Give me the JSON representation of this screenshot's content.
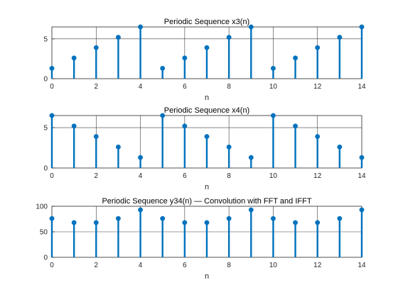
{
  "figure": {
    "background": "#ffffff",
    "stem_color": "#0072bd",
    "grid_color": "#262626"
  },
  "chart_data": [
    {
      "type": "stem",
      "title": "Periodic Sequence x3(n)",
      "xlabel": "n",
      "ylabel": "",
      "xlim": [
        0,
        14
      ],
      "ylim": [
        0,
        6.5
      ],
      "xticks": [
        0,
        2,
        4,
        6,
        8,
        10,
        12,
        14
      ],
      "yticks": [
        0,
        5
      ],
      "grid": true,
      "x": [
        0,
        1,
        2,
        3,
        4,
        5,
        6,
        7,
        8,
        9,
        10,
        11,
        12,
        13,
        14
      ],
      "values": [
        1.3,
        2.6,
        3.9,
        5.2,
        6.5,
        1.3,
        2.6,
        3.9,
        5.2,
        6.5,
        1.3,
        2.6,
        3.9,
        5.2,
        6.5
      ]
    },
    {
      "type": "stem",
      "title": "Periodic Sequence x4(n)",
      "xlabel": "n",
      "ylabel": "",
      "xlim": [
        0,
        14
      ],
      "ylim": [
        0,
        6.5
      ],
      "xticks": [
        0,
        2,
        4,
        6,
        8,
        10,
        12,
        14
      ],
      "yticks": [
        0,
        5
      ],
      "grid": true,
      "x": [
        0,
        1,
        2,
        3,
        4,
        5,
        6,
        7,
        8,
        9,
        10,
        11,
        12,
        13,
        14
      ],
      "values": [
        6.5,
        5.2,
        3.9,
        2.6,
        1.3,
        6.5,
        5.2,
        3.9,
        2.6,
        1.3,
        6.5,
        5.2,
        3.9,
        2.6,
        1.3
      ]
    },
    {
      "type": "stem",
      "title": "Periodic Sequence y34(n)  — Convolution with FFT and IFFT",
      "xlabel": "n",
      "ylabel": "",
      "xlim": [
        0,
        14
      ],
      "ylim": [
        0,
        100
      ],
      "xticks": [
        0,
        2,
        4,
        6,
        8,
        10,
        12,
        14
      ],
      "yticks": [
        0,
        50,
        100
      ],
      "grid": true,
      "x": [
        0,
        1,
        2,
        3,
        4,
        5,
        6,
        7,
        8,
        9,
        10,
        11,
        12,
        13,
        14
      ],
      "values": [
        76,
        68,
        68,
        76,
        93,
        76,
        68,
        68,
        76,
        93,
        76,
        68,
        68,
        76,
        93
      ]
    }
  ]
}
